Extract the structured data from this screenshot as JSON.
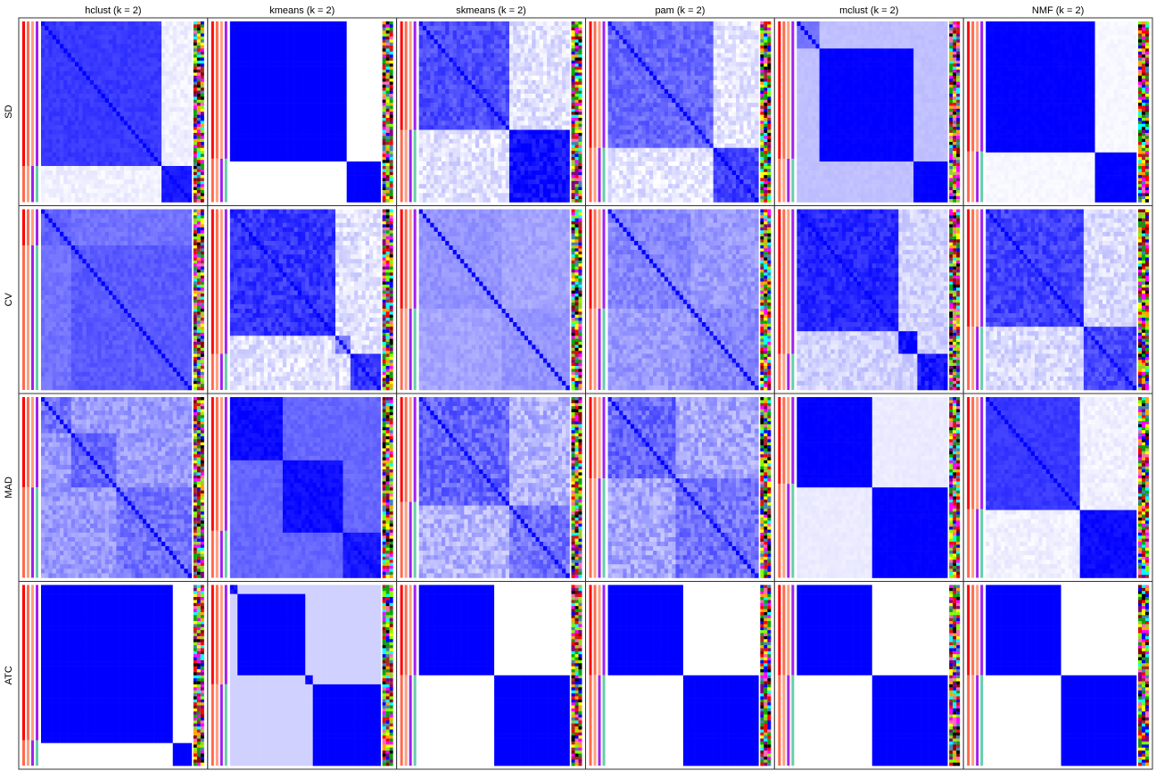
{
  "chart_data": {
    "type": "heatmap",
    "columns": [
      "hclust (k = 2)",
      "kmeans (k = 2)",
      "skmeans (k = 2)",
      "pam (k = 2)",
      "mclust (k = 2)",
      "NMF (k = 2)"
    ],
    "rows": [
      "SD",
      "CV",
      "MAD",
      "ATC"
    ],
    "color_scale": {
      "low": "#ffffff",
      "high": "#0000ff",
      "range": [
        0,
        1
      ]
    },
    "annotation_colors": [
      "#ff0000",
      "#ff6a4d",
      "#ff9e80",
      "#a020f0",
      "#66cdaa"
    ],
    "cells": [
      [
        {
          "splits": [
            0.8
          ],
          "within": [
            0.78,
            0.9
          ],
          "between": 0.06,
          "texture": 0.05
        },
        {
          "splits": [
            0.76
          ],
          "within": [
            1.0,
            1.0
          ],
          "between": 0.0,
          "texture": 0.0
        },
        {
          "splits": [
            0.6
          ],
          "within": [
            0.7,
            0.95
          ],
          "between": 0.12,
          "texture": 0.12
        },
        {
          "splits": [
            0.7
          ],
          "within": [
            0.6,
            0.75
          ],
          "between": 0.1,
          "texture": 0.12
        },
        {
          "splits": [
            0.13,
            0.76
          ],
          "within": [
            0.55,
            1.0,
            1.0
          ],
          "between": 0.25,
          "texture": 0.02
        },
        {
          "splits": [
            0.72
          ],
          "within": [
            1.0,
            1.0
          ],
          "between": 0.03,
          "texture": 0.02
        }
      ],
      [
        {
          "splits": [
            0.2
          ],
          "within": [
            0.62,
            0.65
          ],
          "between": 0.55,
          "texture": 0.06
        },
        {
          "splits": [
            0.7,
            0.8
          ],
          "within": [
            0.8,
            0.5,
            0.8
          ],
          "between": 0.12,
          "texture": 0.12
        },
        {
          "splits": [
            0.55
          ],
          "within": [
            0.42,
            0.42
          ],
          "between": 0.36,
          "texture": 0.06
        },
        {
          "splits": [
            0.55
          ],
          "within": [
            0.48,
            0.48
          ],
          "between": 0.4,
          "texture": 0.1
        },
        {
          "splits": [
            0.66,
            0.8
          ],
          "within": [
            0.85,
            0.95,
            0.9
          ],
          "between": 0.18,
          "texture": 0.1
        },
        {
          "splits": [
            0.65
          ],
          "within": [
            0.75,
            0.72
          ],
          "between": 0.15,
          "texture": 0.12
        }
      ],
      [
        {
          "splits": [
            0.2,
            0.5
          ],
          "within": [
            0.55,
            0.6,
            0.55
          ],
          "between": 0.4,
          "texture": 0.12
        },
        {
          "splits": [
            0.35,
            0.74
          ],
          "within": [
            0.95,
            0.95,
            0.9
          ],
          "between": 0.6,
          "texture": 0.05
        },
        {
          "splits": [
            0.58
          ],
          "within": [
            0.6,
            0.55
          ],
          "between": 0.3,
          "texture": 0.15
        },
        {
          "splits": [
            0.45
          ],
          "within": [
            0.6,
            0.55
          ],
          "between": 0.35,
          "texture": 0.15
        },
        {
          "splits": [
            0.48
          ],
          "within": [
            1.0,
            1.0
          ],
          "between": 0.08,
          "texture": 0.02
        },
        {
          "splits": [
            0.62
          ],
          "within": [
            0.78,
            0.95
          ],
          "between": 0.06,
          "texture": 0.05
        }
      ],
      [
        {
          "splits": [
            0.86
          ],
          "within": [
            1.0,
            1.0
          ],
          "between": 0.0,
          "texture": 0.0
        },
        {
          "splits": [
            0.05,
            0.5,
            0.55
          ],
          "within": [
            0.9,
            1.0,
            0.95,
            1.0
          ],
          "between": 0.18,
          "texture": 0.0
        },
        {
          "splits": [
            0.5
          ],
          "within": [
            1.0,
            1.0
          ],
          "between": 0.0,
          "texture": 0.0
        },
        {
          "splits": [
            0.5
          ],
          "within": [
            1.0,
            1.0
          ],
          "between": 0.0,
          "texture": 0.0
        },
        {
          "splits": [
            0.5
          ],
          "within": [
            1.0,
            1.0
          ],
          "between": 0.0,
          "texture": 0.0
        },
        {
          "splits": [
            0.5
          ],
          "within": [
            1.0,
            1.0
          ],
          "between": 0.0,
          "texture": 0.0
        }
      ]
    ],
    "xlabel": "",
    "ylabel": ""
  }
}
